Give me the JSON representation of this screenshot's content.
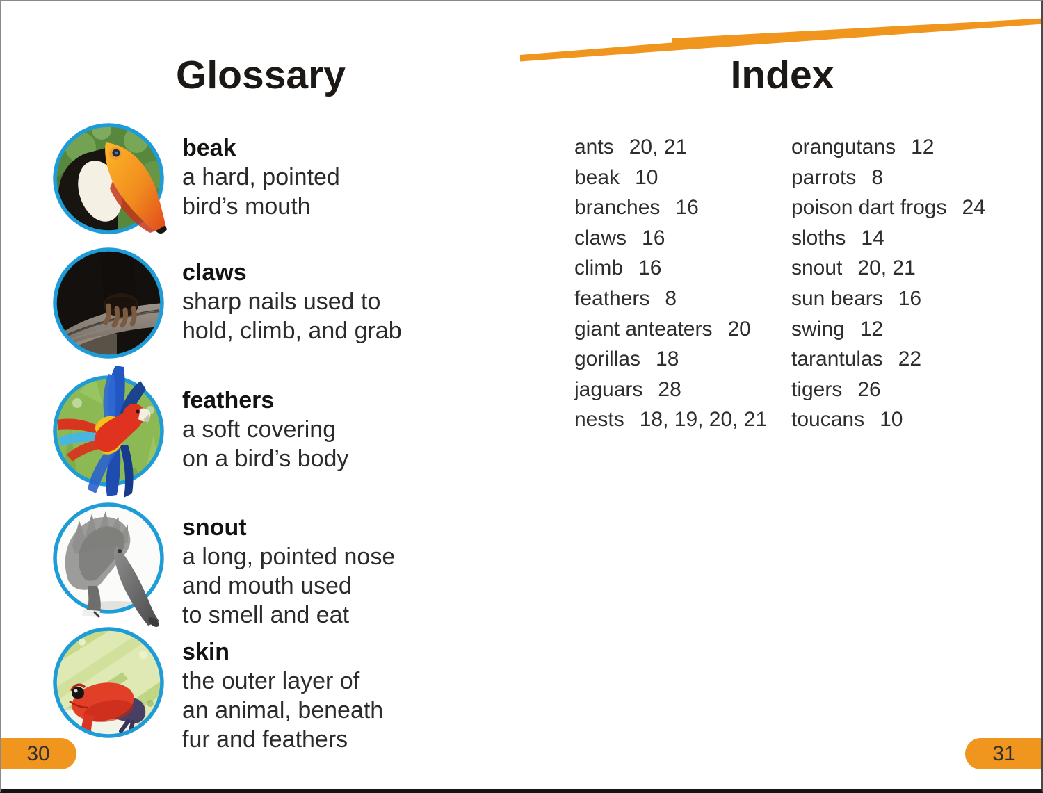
{
  "page": {
    "left_page_number": "30",
    "right_page_number": "31"
  },
  "colors": {
    "accent_orange": "#F0961E",
    "photo_ring_blue": "#1E9CD7",
    "text_dark": "#2b2b2b"
  },
  "glossary": {
    "title": "Glossary",
    "entries": [
      {
        "term": "beak",
        "definition_lines": [
          "a hard, pointed",
          "bird’s mouth"
        ],
        "image": "toucan"
      },
      {
        "term": "claws",
        "definition_lines": [
          "sharp nails used to",
          "hold, climb, and grab"
        ],
        "image": "monkey-hand"
      },
      {
        "term": "feathers",
        "definition_lines": [
          "a soft covering",
          "on a bird’s body"
        ],
        "image": "macaw"
      },
      {
        "term": "snout",
        "definition_lines": [
          "a long, pointed nose",
          "and mouth used",
          "to smell and eat"
        ],
        "image": "anteater"
      },
      {
        "term": "skin",
        "definition_lines": [
          "the outer layer of",
          "an animal, beneath",
          "fur and feathers"
        ],
        "image": "frog"
      }
    ]
  },
  "index": {
    "title": "Index",
    "columns": [
      {
        "items": [
          {
            "term": "ants",
            "pages": "20, 21"
          },
          {
            "term": "beak",
            "pages": "10"
          },
          {
            "term": "branches",
            "pages": "16"
          },
          {
            "term": "claws",
            "pages": "16"
          },
          {
            "term": "climb",
            "pages": "16"
          },
          {
            "term": "feathers",
            "pages": "8"
          },
          {
            "term": "giant anteaters",
            "pages": "20"
          },
          {
            "term": "gorillas",
            "pages": "18"
          },
          {
            "term": "jaguars",
            "pages": "28"
          },
          {
            "term": "nests",
            "pages": "18, 19, 20, 21"
          }
        ]
      },
      {
        "items": [
          {
            "term": "orangutans",
            "pages": "12"
          },
          {
            "term": "parrots",
            "pages": "8"
          },
          {
            "term": "poison dart frogs",
            "pages": "24"
          },
          {
            "term": "sloths",
            "pages": "14"
          },
          {
            "term": "snout",
            "pages": "20, 21"
          },
          {
            "term": "sun bears",
            "pages": "16"
          },
          {
            "term": "swing",
            "pages": "12"
          },
          {
            "term": "tarantulas",
            "pages": "22"
          },
          {
            "term": "tigers",
            "pages": "26"
          },
          {
            "term": "toucans",
            "pages": "10"
          }
        ]
      }
    ]
  }
}
